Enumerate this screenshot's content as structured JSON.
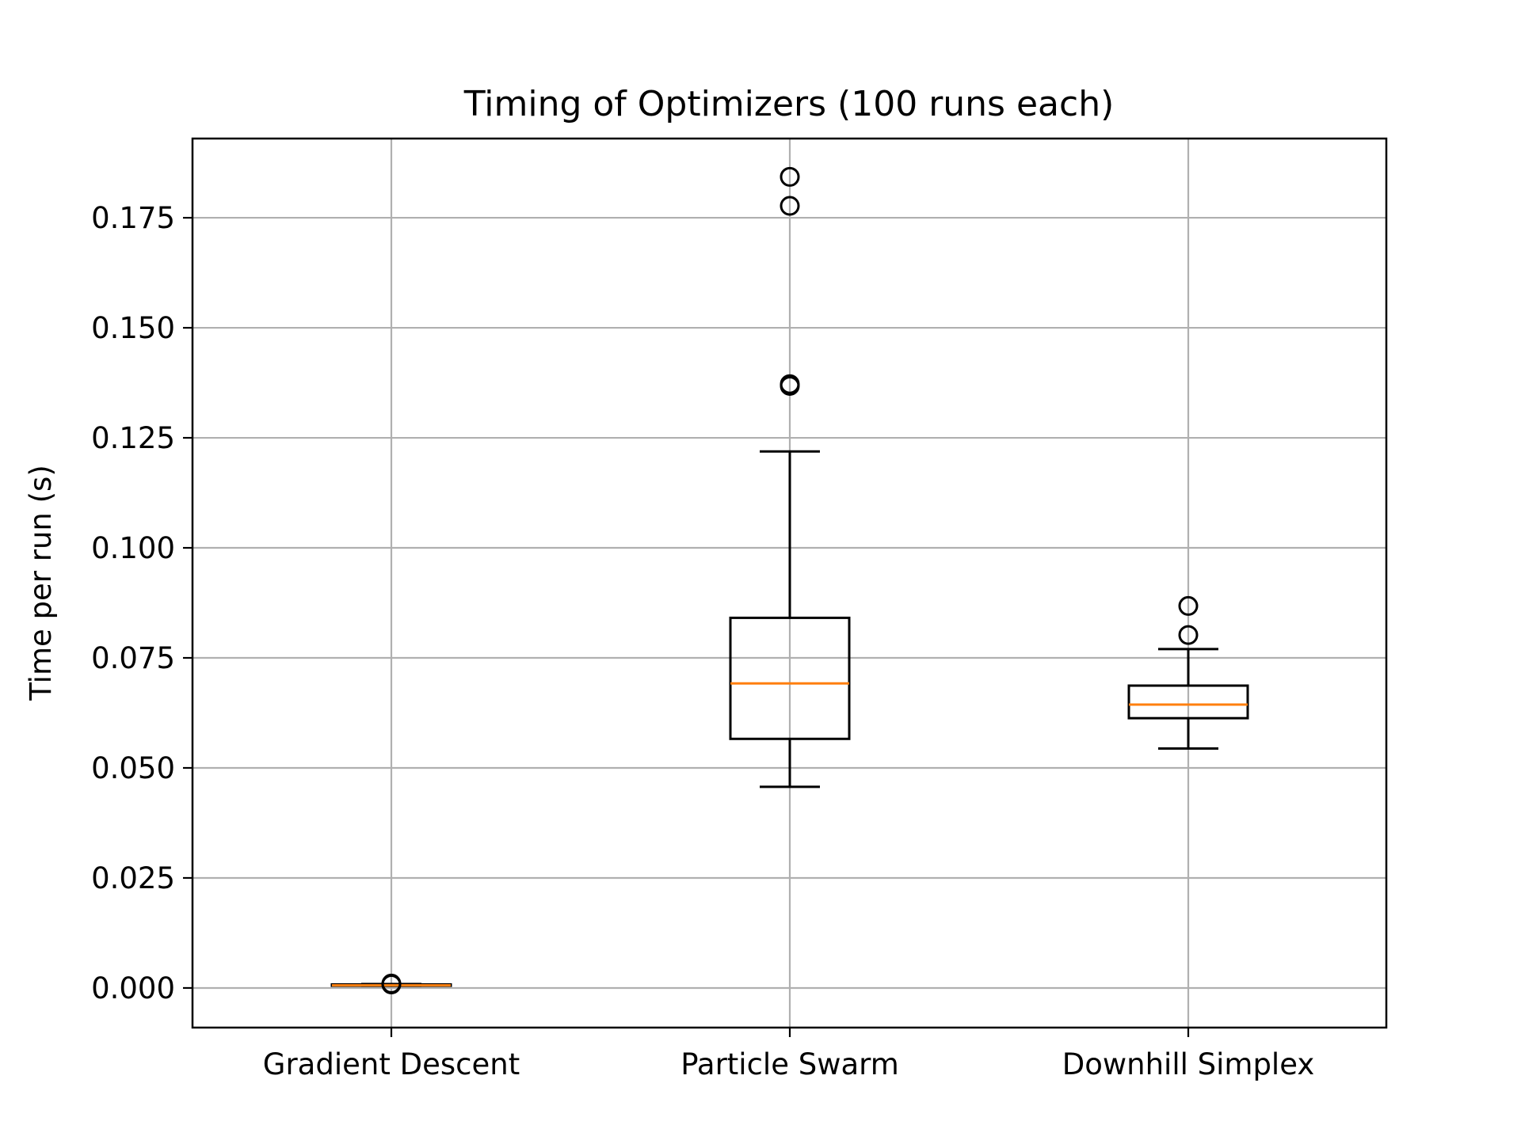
{
  "chart_data": {
    "type": "box",
    "title": "Timing of Optimizers (100 runs each)",
    "xlabel": "",
    "ylabel": "Time per run (s)",
    "ylim": [
      -0.009,
      0.193
    ],
    "yticks": [
      0.0,
      0.025,
      0.05,
      0.075,
      0.1,
      0.125,
      0.15,
      0.175
    ],
    "ytick_labels": [
      "0.000",
      "0.025",
      "0.050",
      "0.075",
      "0.100",
      "0.125",
      "0.150",
      "0.175"
    ],
    "grid": true,
    "categories": [
      "Gradient Descent",
      "Particle Swarm",
      "Downhill Simplex"
    ],
    "boxes": [
      {
        "name": "Gradient Descent",
        "whisker_low": 0.0005,
        "q1": 0.0005,
        "median": 0.0006,
        "q3": 0.0008,
        "whisker_high": 0.0009,
        "fliers": [
          0.0008,
          0.001
        ]
      },
      {
        "name": "Particle Swarm",
        "whisker_low": 0.0457,
        "q1": 0.0566,
        "median": 0.0692,
        "q3": 0.0841,
        "whisker_high": 0.1219,
        "fliers": [
          0.1368,
          0.1372,
          0.1777,
          0.1843
        ]
      },
      {
        "name": "Downhill Simplex",
        "whisker_low": 0.0544,
        "q1": 0.0613,
        "median": 0.0644,
        "q3": 0.0687,
        "whisker_high": 0.077,
        "fliers": [
          0.0802,
          0.0868
        ]
      }
    ],
    "colors": {
      "box": "#000000",
      "median": "#ff7f0e",
      "grid": "#b0b0b0"
    }
  }
}
